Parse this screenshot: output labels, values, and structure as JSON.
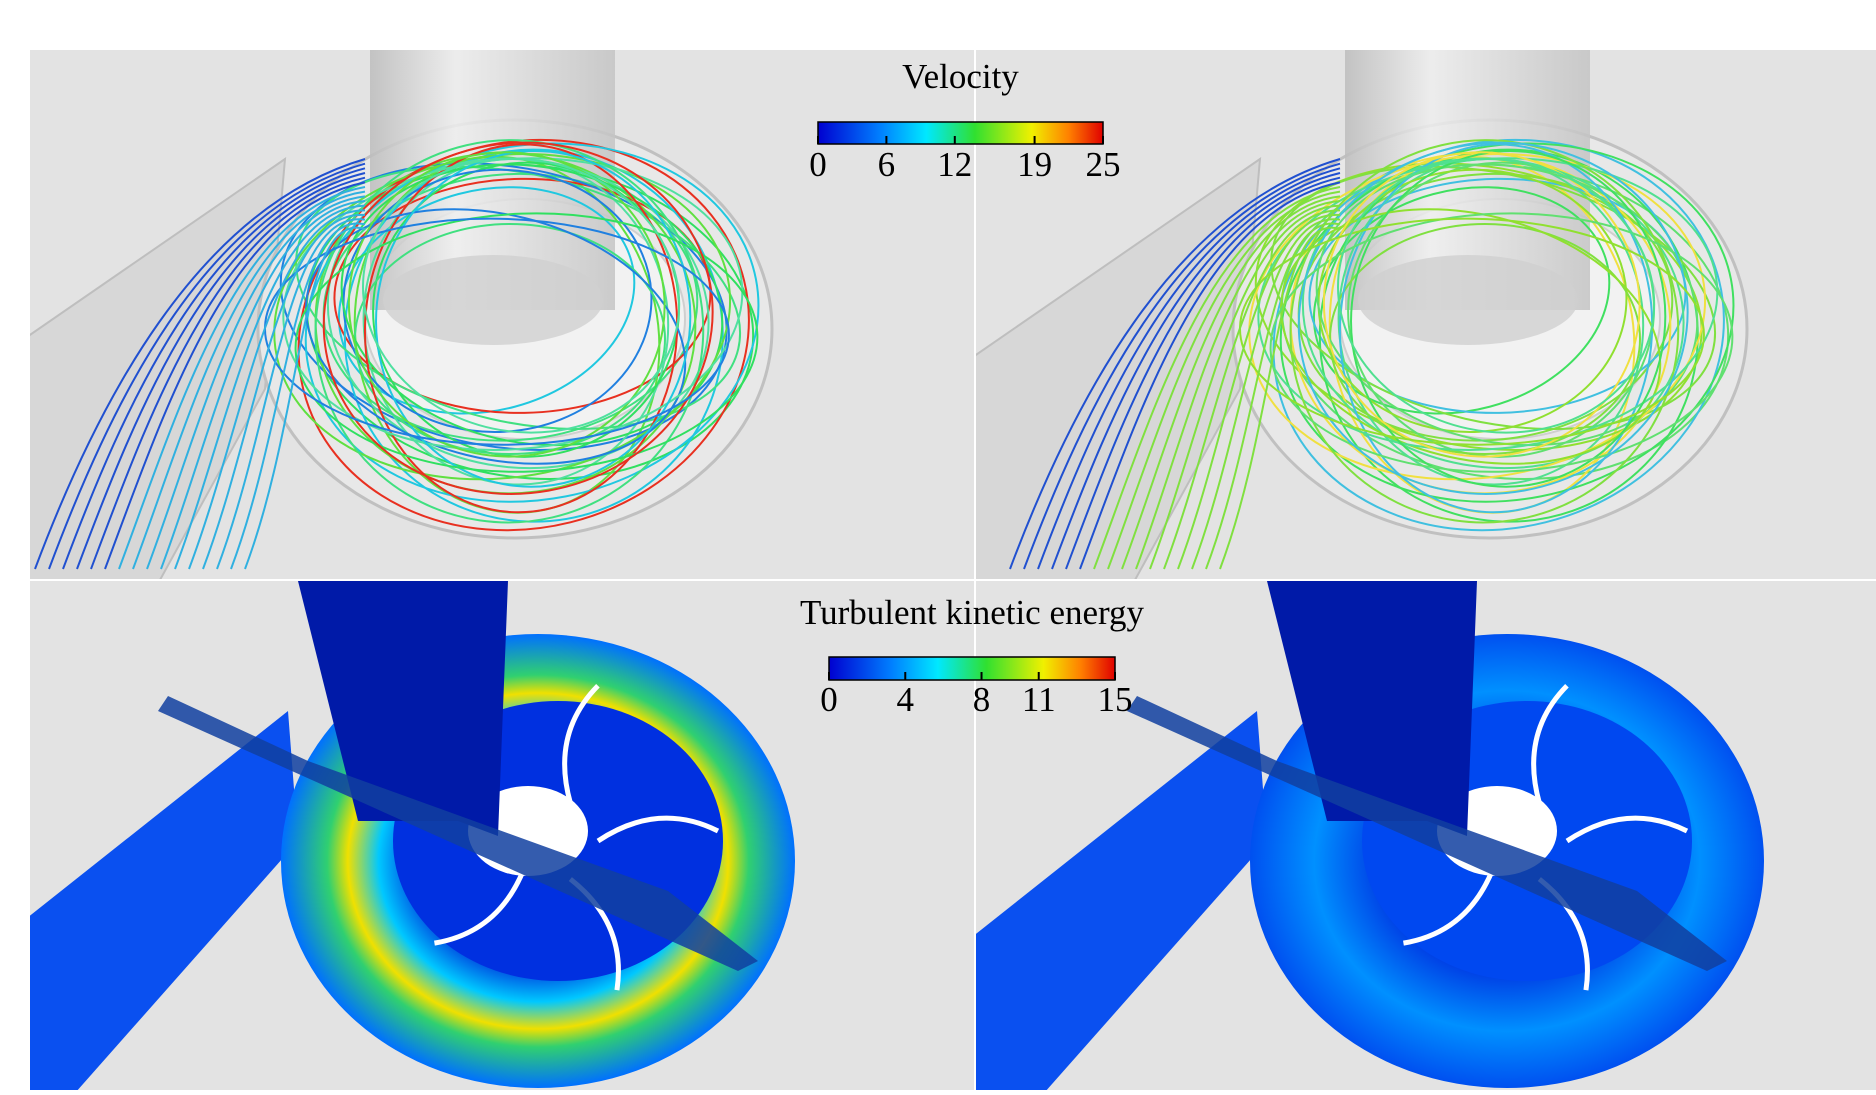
{
  "colorbars": [
    {
      "title": "Velocity",
      "lim": [
        0,
        25
      ],
      "ticks": [
        0,
        6,
        12,
        19,
        25
      ]
    },
    {
      "title": "Turbulent kinetic energy",
      "lim": [
        0,
        15
      ],
      "ticks": [
        0,
        4,
        8,
        11,
        15
      ]
    }
  ]
}
